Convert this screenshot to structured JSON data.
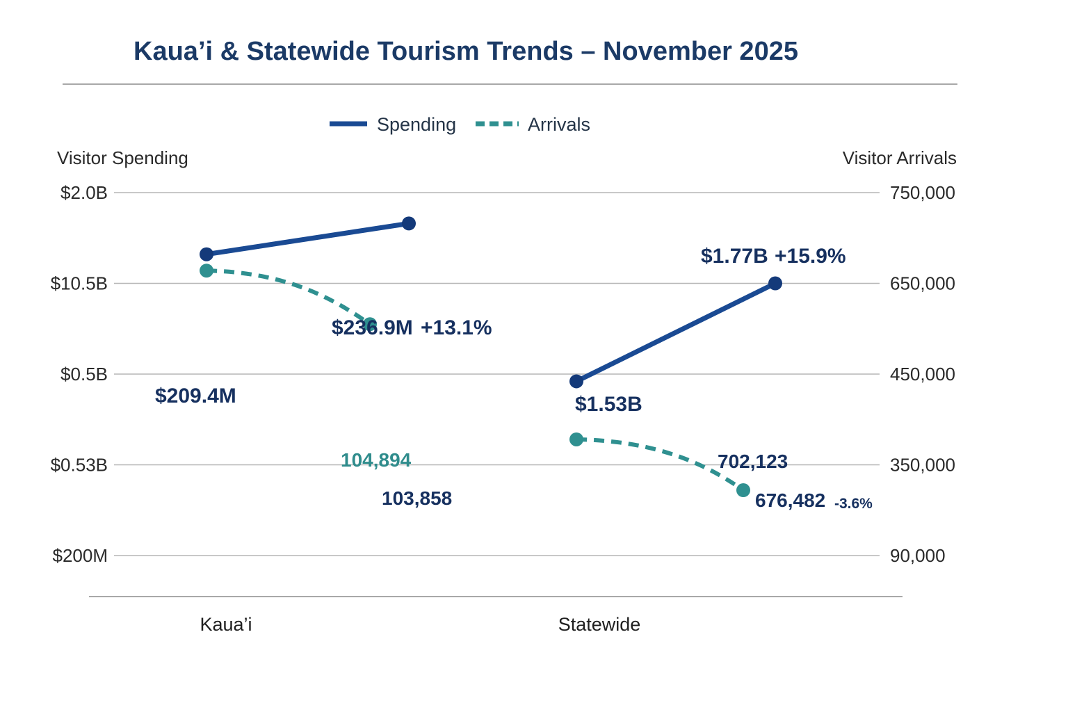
{
  "chart_data": {
    "type": "line",
    "title": "Kaua’i & Statewide Tourism Trends – November 2025",
    "y_left_label": "Visitor Spending",
    "y_right_label": "Visitor Arrivals",
    "y_left_ticks": [
      "$2.0B",
      "$10.5B",
      "$0.5B",
      "$0.53B",
      "$200M"
    ],
    "y_right_ticks": [
      "750,000",
      "650,000",
      "450,000",
      "350,000",
      "90,000"
    ],
    "categories": [
      "Kaua’i",
      "Statewide"
    ],
    "legend": [
      {
        "name": "Spending",
        "style": "solid",
        "color": "#1a4a93"
      },
      {
        "name": "Arrivals",
        "style": "dashed",
        "color": "#2f9090"
      }
    ],
    "groups": [
      {
        "category": "Kaua’i",
        "spending": {
          "from_label": "$209.4M",
          "to_label": "$236.9M",
          "change": "+13.1%",
          "from_level": 0.68,
          "to_level": 0.34
        },
        "arrivals": {
          "from_label": "104,894",
          "to_label": "103,858",
          "from_level": 0.86,
          "to_level": 1.45
        }
      },
      {
        "category": "Statewide",
        "spending": {
          "from_label": "$1.53B",
          "to_label": "$1.77B",
          "change": "+15.9%",
          "from_level": 2.08,
          "to_level": 1.0
        },
        "arrivals": {
          "from_label": "702,123",
          "to_label": "676,482",
          "change": "-3.6%",
          "from_level": 2.72,
          "to_level": 3.28
        }
      }
    ],
    "colors": {
      "title": "#1b3a66",
      "spending": "#1a4a93",
      "arrivals": "#2f9090",
      "label_dark": "#16305f",
      "label_teal": "#2f8c8c"
    }
  }
}
